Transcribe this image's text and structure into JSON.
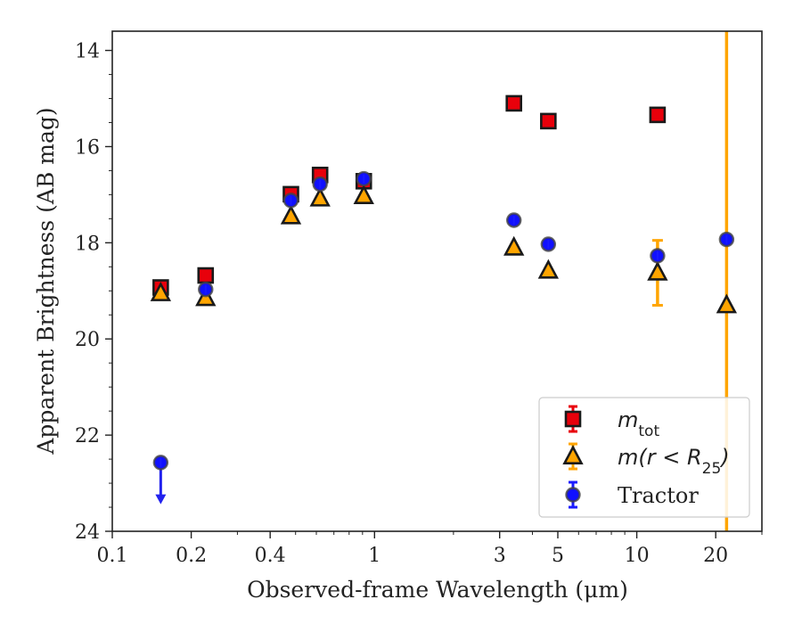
{
  "chart_data": {
    "type": "scatter",
    "xlabel": "Observed-frame Wavelength (μm)",
    "ylabel": "Apparent Brightness (AB mag)",
    "x_scale": "log",
    "xlim": [
      0.1,
      30
    ],
    "ylim": [
      24,
      13.6
    ],
    "y_inverted": true,
    "x_ticks": [
      0.1,
      0.2,
      0.4,
      1,
      3,
      5,
      10,
      20
    ],
    "x_tick_labels": [
      "0.1",
      "0.2",
      "0.4",
      "1",
      "3",
      "5",
      "10",
      "20"
    ],
    "y_ticks": [
      14,
      16,
      18,
      20,
      22,
      24
    ],
    "y_tick_labels": [
      "14",
      "16",
      "18",
      "20",
      "22",
      "24"
    ],
    "grid": false,
    "legend_position": "lower right",
    "series": [
      {
        "key": "mtot",
        "name_main": "m",
        "name_sub": "tot",
        "marker": "square",
        "fill": "#e8000b",
        "errcolor": "#e8000b",
        "points": [
          {
            "x": 0.153,
            "y": 18.93
          },
          {
            "x": 0.227,
            "y": 18.68
          },
          {
            "x": 0.48,
            "y": 16.99
          },
          {
            "x": 0.62,
            "y": 16.59
          },
          {
            "x": 0.91,
            "y": 16.72
          },
          {
            "x": 3.4,
            "y": 15.1
          },
          {
            "x": 4.6,
            "y": 15.47
          },
          {
            "x": 12.0,
            "y": 15.34
          }
        ]
      },
      {
        "key": "mr25",
        "name_main": "m(r < R",
        "name_sub": "25",
        "name_tail": ")",
        "marker": "triangle",
        "fill": "#ffa500",
        "errcolor": "#ffa500",
        "points": [
          {
            "x": 0.153,
            "y": 19.05
          },
          {
            "x": 0.227,
            "y": 19.15
          },
          {
            "x": 0.48,
            "y": 17.45
          },
          {
            "x": 0.62,
            "y": 17.08
          },
          {
            "x": 0.91,
            "y": 17.03
          },
          {
            "x": 3.4,
            "y": 18.1
          },
          {
            "x": 4.6,
            "y": 18.58
          },
          {
            "x": 12.0,
            "y": 18.62,
            "err": [
              17.95,
              19.3
            ]
          },
          {
            "x": 22.0,
            "y": 19.3,
            "err": [
              13.6,
              24.0
            ]
          }
        ]
      },
      {
        "key": "tractor",
        "name": "Tractor",
        "marker": "circle",
        "fill": "#1010ff",
        "errcolor": "#1a1aff",
        "points": [
          {
            "x": 0.153,
            "y": 22.57,
            "upper_limit": true,
            "arrow_to": 23.4
          },
          {
            "x": 0.227,
            "y": 18.97
          },
          {
            "x": 0.48,
            "y": 17.12
          },
          {
            "x": 0.62,
            "y": 16.78
          },
          {
            "x": 0.91,
            "y": 16.67
          },
          {
            "x": 3.4,
            "y": 17.53
          },
          {
            "x": 4.6,
            "y": 18.03
          },
          {
            "x": 12.0,
            "y": 18.27
          },
          {
            "x": 22.0,
            "y": 17.93
          }
        ]
      }
    ]
  }
}
